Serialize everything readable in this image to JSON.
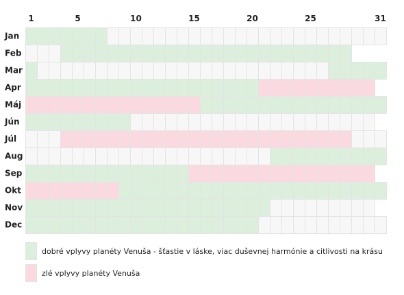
{
  "chart_data": {
    "type": "heatmap",
    "x_ticks": [
      "1",
      "5",
      "10",
      "15",
      "20",
      "25",
      "31"
    ],
    "months": [
      {
        "label": "Jan",
        "days": 31,
        "good": [
          [
            1,
            7
          ]
        ],
        "bad": []
      },
      {
        "label": "Feb",
        "days": 28,
        "good": [
          [
            4,
            28
          ]
        ],
        "bad": []
      },
      {
        "label": "Mar",
        "days": 31,
        "good": [
          [
            1,
            1
          ],
          [
            27,
            31
          ]
        ],
        "bad": []
      },
      {
        "label": "Apr",
        "days": 30,
        "good": [
          [
            1,
            20
          ]
        ],
        "bad": [
          [
            21,
            30
          ]
        ]
      },
      {
        "label": "Máj",
        "days": 31,
        "good": [
          [
            16,
            31
          ]
        ],
        "bad": [
          [
            1,
            15
          ]
        ]
      },
      {
        "label": "Jún",
        "days": 30,
        "good": [
          [
            1,
            9
          ]
        ],
        "bad": []
      },
      {
        "label": "Júl",
        "days": 31,
        "good": [],
        "bad": [
          [
            4,
            28
          ]
        ]
      },
      {
        "label": "Aug",
        "days": 31,
        "good": [
          [
            22,
            31
          ]
        ],
        "bad": []
      },
      {
        "label": "Sep",
        "days": 30,
        "good": [
          [
            1,
            14
          ]
        ],
        "bad": [
          [
            15,
            30
          ]
        ]
      },
      {
        "label": "Okt",
        "days": 31,
        "good": [
          [
            9,
            31
          ]
        ],
        "bad": [
          [
            1,
            8
          ]
        ]
      },
      {
        "label": "Nov",
        "days": 30,
        "good": [
          [
            1,
            21
          ]
        ],
        "bad": []
      },
      {
        "label": "Dec",
        "days": 31,
        "good": [
          [
            1,
            20
          ]
        ],
        "bad": []
      }
    ],
    "legend": [
      {
        "key": "good",
        "label": "dobré vplyvy planéty Venuša - šťastie v láske, viac duševnej harmónie a citlivosti na krásu"
      },
      {
        "key": "bad",
        "label": "zlé vplyvy planéty Venuša"
      }
    ]
  },
  "colors": {
    "good": "#dcefdc",
    "bad": "#fad9e0",
    "neutral": "#f7f7f7",
    "cell_border": "#e4e4e4",
    "text": "#222222"
  }
}
